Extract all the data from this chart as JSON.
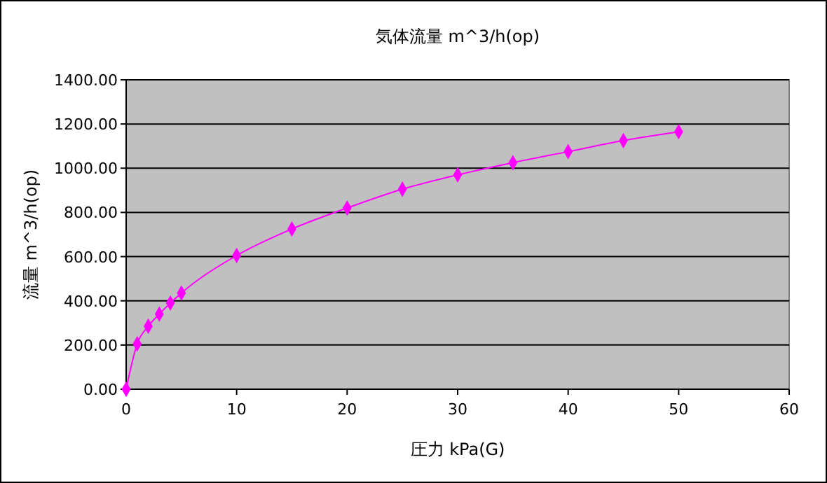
{
  "chart_data": {
    "type": "line",
    "title": "気体流量 m^3/h(op)",
    "xlabel": "圧力 kPa(G)",
    "ylabel": "流量 m^3/h(op)",
    "x": [
      0,
      1,
      2,
      3,
      4,
      5,
      10,
      15,
      20,
      25,
      30,
      35,
      40,
      45,
      50
    ],
    "series": [
      {
        "color": "#ff00ff",
        "values": [
          0,
          205,
          285,
          340,
          390,
          435,
          605,
          725,
          820,
          905,
          970,
          1025,
          1075,
          1125,
          1165
        ]
      }
    ],
    "xlim": [
      0,
      60
    ],
    "xticks": [
      0,
      10,
      20,
      30,
      40,
      50,
      60
    ],
    "ylim": [
      0,
      1400
    ],
    "yticks": [
      {
        "value": 0,
        "label": "0.00"
      },
      {
        "value": 200,
        "label": "200.00"
      },
      {
        "value": 400,
        "label": "400.00"
      },
      {
        "value": 600,
        "label": "600.00"
      },
      {
        "value": 800,
        "label": "800.00"
      },
      {
        "value": 1000,
        "label": "1000.00"
      },
      {
        "value": 1200,
        "label": "1200.00"
      },
      {
        "value": 1400,
        "label": "1400.00"
      }
    ],
    "grid": "y",
    "marker": "diamond",
    "line_style": "solid"
  }
}
